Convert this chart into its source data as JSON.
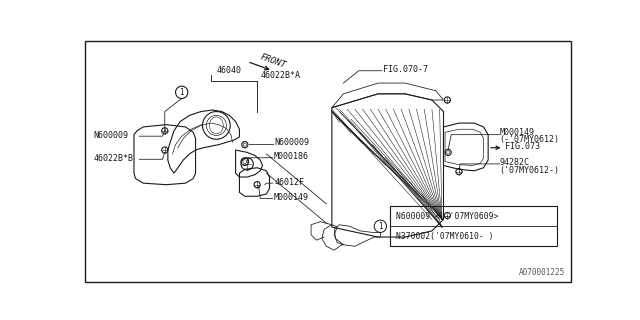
{
  "background_color": "#ffffff",
  "diagram_color": "#1a1a1a",
  "label_fontsize": 6.0,
  "fig_width": 6.4,
  "fig_height": 3.2,
  "watermark": "A070001225",
  "legend_text1": "N600009 < -'07MY0609>",
  "legend_text2": "N370002('07MY0610- )",
  "front_text": "FRONT"
}
